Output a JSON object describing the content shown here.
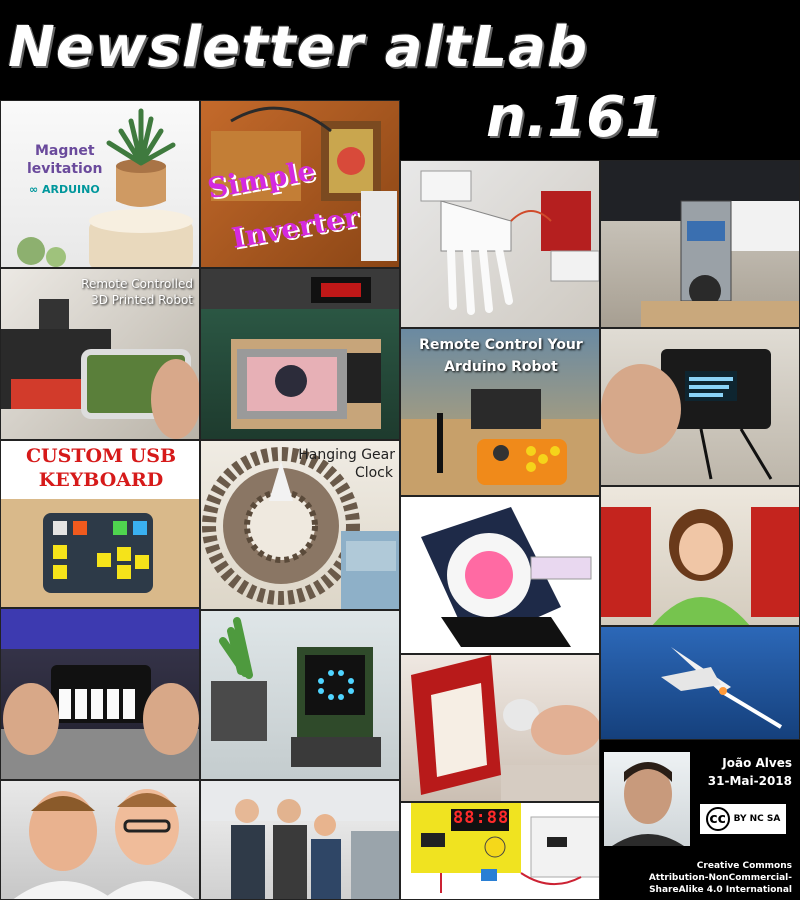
{
  "header": {
    "title": "Newsletter altLab",
    "issue": "n.161"
  },
  "tiles": {
    "magnet": {
      "line1": "Magnet",
      "line2": "levitation",
      "brand": "ARDUINO"
    },
    "inverter": {
      "line1": "Simple",
      "line2": "Inverter"
    },
    "remote3d": {
      "line1": "Remote Controlled",
      "line2": "3D Printed Robot"
    },
    "rcrobot": {
      "line1": "Remote Control Your",
      "line2": "Arduino Robot"
    },
    "keyboard": {
      "line1": "CUSTOM USB",
      "line2": "KEYBOARD"
    },
    "gear": {
      "line1": "Hanging Gear",
      "line2": "Clock"
    },
    "timer": {
      "display": "88:88"
    }
  },
  "author": {
    "name": "João Alves",
    "date": "31-Mai-2018"
  },
  "license": {
    "badge": "BY NC SA",
    "line1": "Creative Commons",
    "line2": "Attribution-NonCommercial-",
    "line3": "ShareAlike 4.0 International"
  },
  "colors": {
    "background": "#000000",
    "title_text": "#ffffff",
    "inverter_caption": "#d42adf",
    "keyboard_caption": "#d61a1a",
    "arduino_teal": "#00979c"
  }
}
